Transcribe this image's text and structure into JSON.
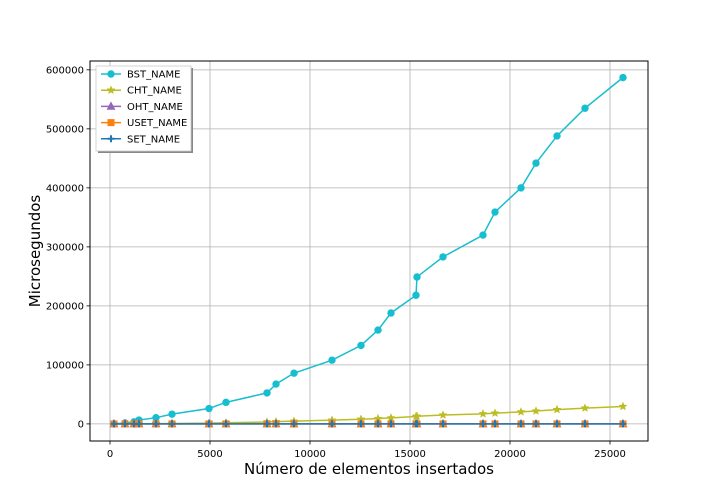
{
  "chart_data": {
    "type": "line",
    "xlabel": "Número de elementos insertados",
    "ylabel": "Microsegundos",
    "xlim": [
      -1000,
      26900
    ],
    "ylim": [
      -29000,
      615000
    ],
    "xticks": [
      0,
      5000,
      10000,
      15000,
      20000,
      25000
    ],
    "yticks": [
      0,
      100000,
      200000,
      300000,
      400000,
      500000,
      600000
    ],
    "xtick_labels": [
      "0",
      "5000",
      "10000",
      "15000",
      "20000",
      "25000"
    ],
    "ytick_labels": [
      "0",
      "100000",
      "200000",
      "300000",
      "400000",
      "500000",
      "600000"
    ],
    "grid": true,
    "legend_position": "top-left",
    "x": [
      200,
      750,
      1200,
      1450,
      2300,
      3100,
      4950,
      5800,
      7850,
      8300,
      9200,
      11100,
      12550,
      13400,
      14050,
      15300,
      15350,
      16650,
      18650,
      19250,
      20550,
      21300,
      22350,
      23750,
      25650
    ],
    "series": [
      {
        "name": "BST_NAME",
        "color": "#17becf",
        "marker": "circle",
        "values": [
          0,
          1500,
          3500,
          6500,
          10500,
          16500,
          26000,
          36500,
          52500,
          67500,
          86000,
          108000,
          133000,
          159000,
          188000,
          218000,
          249000,
          283000,
          320000,
          359000,
          400000,
          442000,
          488000,
          535000,
          587000
        ]
      },
      {
        "name": "CHT_NAME",
        "color": "#bcbd22",
        "marker": "star",
        "values": [
          0,
          100,
          200,
          300,
          500,
          700,
          1200,
          2000,
          3200,
          3800,
          4600,
          6300,
          7900,
          9000,
          10100,
          12500,
          13000,
          15000,
          17000,
          18200,
          20300,
          21800,
          24200,
          26800,
          29500
        ]
      },
      {
        "name": "OHT_NAME",
        "color": "#9467bd",
        "marker": "triangle",
        "values": [
          0,
          0,
          0,
          0,
          0,
          0,
          0,
          0,
          0,
          0,
          0,
          0,
          0,
          0,
          0,
          0,
          0,
          0,
          0,
          0,
          0,
          0,
          0,
          0,
          0
        ]
      },
      {
        "name": "USET_NAME",
        "color": "#ff7f0e",
        "marker": "square",
        "values": [
          0,
          0,
          0,
          0,
          0,
          0,
          0,
          0,
          0,
          0,
          0,
          0,
          0,
          0,
          0,
          0,
          0,
          0,
          0,
          0,
          0,
          0,
          0,
          0,
          0
        ]
      },
      {
        "name": "SET_NAME",
        "color": "#1f77b4",
        "marker": "plus",
        "values": [
          0,
          0,
          0,
          0,
          0,
          0,
          0,
          0,
          0,
          0,
          0,
          0,
          0,
          0,
          0,
          0,
          0,
          0,
          0,
          0,
          0,
          0,
          0,
          0,
          0
        ]
      }
    ]
  }
}
